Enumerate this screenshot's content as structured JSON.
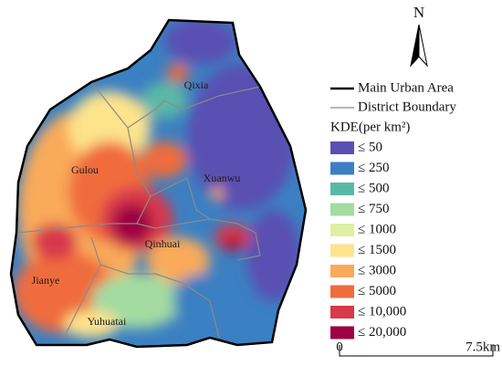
{
  "north": "N",
  "districts": [
    "Qixia",
    "Gulou",
    "Xuanwu",
    "Qinhuai",
    "Jianye",
    "Yuhuatai"
  ],
  "legend": {
    "main_urban_area": "Main Urban Area",
    "district_boundary": "District Boundary",
    "title": "KDE(per km²)",
    "classes": [
      {
        "label": "≤ 50",
        "color": "#5a4fb2"
      },
      {
        "label": "≤ 250",
        "color": "#3b80c2"
      },
      {
        "label": "≤ 500",
        "color": "#5bb8a6"
      },
      {
        "label": "≤ 750",
        "color": "#a3dba0"
      },
      {
        "label": "≤ 1000",
        "color": "#e0f0a2"
      },
      {
        "label": "≤ 1500",
        "color": "#fde38c"
      },
      {
        "label": "≤ 3000",
        "color": "#f9aa5a"
      },
      {
        "label": "≤ 5000",
        "color": "#f06c3c"
      },
      {
        "label": "≤ 10,000",
        "color": "#d8394b"
      },
      {
        "label": "≤ 20,000",
        "color": "#9e0142"
      }
    ]
  },
  "scale_bar": {
    "start": "0",
    "end": "7.5km"
  }
}
